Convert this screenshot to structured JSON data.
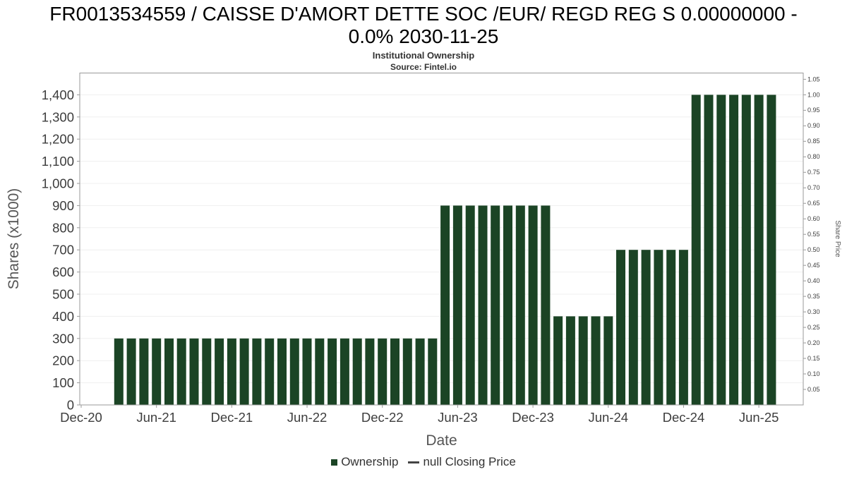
{
  "header": {
    "title_line1": "FR0013534559 / CAISSE D'AMORT DETTE SOC /EUR/ REGD REG S 0.00000000 -",
    "title_line2": "0.0% 2030-11-25",
    "subtitle": "Institutional Ownership",
    "source": "Source: Fintel.io"
  },
  "legend": {
    "ownership_label": "Ownership",
    "closing_price_label": "null Closing Price"
  },
  "colors": {
    "bar": "#1b4425",
    "grid": "#efefef",
    "plot_border": "#9a9a9a",
    "axis_text": "#3d3d3d",
    "axis_title": "#555555"
  },
  "chart_data": {
    "type": "bar",
    "title": "FR0013534559 / CAISSE D'AMORT DETTE SOC /EUR/ REGD REG S 0.00000000 - 0.0% 2030-11-25",
    "subtitle": "Institutional Ownership",
    "source": "Source: Fintel.io",
    "xlabel": "Date",
    "ylabel_left": "Shares (x1000)",
    "ylabel_right": "Share Price",
    "legend": [
      "Ownership",
      "null Closing Price"
    ],
    "grid": true,
    "legend_position": "bottom",
    "ylim_left": [
      0,
      1500
    ],
    "ylim_right": [
      0,
      1.0714
    ],
    "y_ticks_left": [
      0,
      100,
      200,
      300,
      400,
      500,
      600,
      700,
      800,
      900,
      1000,
      1100,
      1200,
      1300,
      1400
    ],
    "y_ticks_right": [
      0.05,
      0.1,
      0.15,
      0.2,
      0.25,
      0.3,
      0.35,
      0.4,
      0.45,
      0.5,
      0.55,
      0.6,
      0.65,
      0.7,
      0.75,
      0.8,
      0.85,
      0.9,
      0.95,
      1.0,
      1.05
    ],
    "x_ticks": [
      "Dec-20",
      "Jun-21",
      "Dec-21",
      "Jun-22",
      "Dec-22",
      "Jun-23",
      "Dec-23",
      "Jun-24",
      "Dec-24",
      "Jun-25"
    ],
    "points": [
      [
        "Mar-21",
        300
      ],
      [
        "Apr-21",
        300
      ],
      [
        "May-21",
        300
      ],
      [
        "Jun-21",
        300
      ],
      [
        "Jul-21",
        300
      ],
      [
        "Aug-21",
        300
      ],
      [
        "Sep-21",
        300
      ],
      [
        "Oct-21",
        300
      ],
      [
        "Nov-21",
        300
      ],
      [
        "Dec-21",
        300
      ],
      [
        "Jan-22",
        300
      ],
      [
        "Feb-22",
        300
      ],
      [
        "Mar-22",
        300
      ],
      [
        "Apr-22",
        300
      ],
      [
        "May-22",
        300
      ],
      [
        "Jun-22",
        300
      ],
      [
        "Jul-22",
        300
      ],
      [
        "Aug-22",
        300
      ],
      [
        "Sep-22",
        300
      ],
      [
        "Oct-22",
        300
      ],
      [
        "Nov-22",
        300
      ],
      [
        "Dec-22",
        300
      ],
      [
        "Jan-23",
        300
      ],
      [
        "Feb-23",
        300
      ],
      [
        "Mar-23",
        300
      ],
      [
        "Apr-23",
        300
      ],
      [
        "May-23",
        900
      ],
      [
        "Jun-23",
        900
      ],
      [
        "Jul-23",
        900
      ],
      [
        "Aug-23",
        900
      ],
      [
        "Sep-23",
        900
      ],
      [
        "Oct-23",
        900
      ],
      [
        "Nov-23",
        900
      ],
      [
        "Dec-23",
        900
      ],
      [
        "Jan-24",
        900
      ],
      [
        "Feb-24",
        400
      ],
      [
        "Mar-24",
        400
      ],
      [
        "Apr-24",
        400
      ],
      [
        "May-24",
        400
      ],
      [
        "Jun-24",
        400
      ],
      [
        "Jul-24",
        700
      ],
      [
        "Aug-24",
        700
      ],
      [
        "Sep-24",
        700
      ],
      [
        "Oct-24",
        700
      ],
      [
        "Nov-24",
        700
      ],
      [
        "Dec-24",
        700
      ],
      [
        "Jan-25",
        1400
      ],
      [
        "Feb-25",
        1400
      ],
      [
        "Mar-25",
        1400
      ],
      [
        "Apr-25",
        1400
      ],
      [
        "May-25",
        1400
      ],
      [
        "Jun-25",
        1400
      ],
      [
        "Jul-25",
        1400
      ]
    ]
  }
}
